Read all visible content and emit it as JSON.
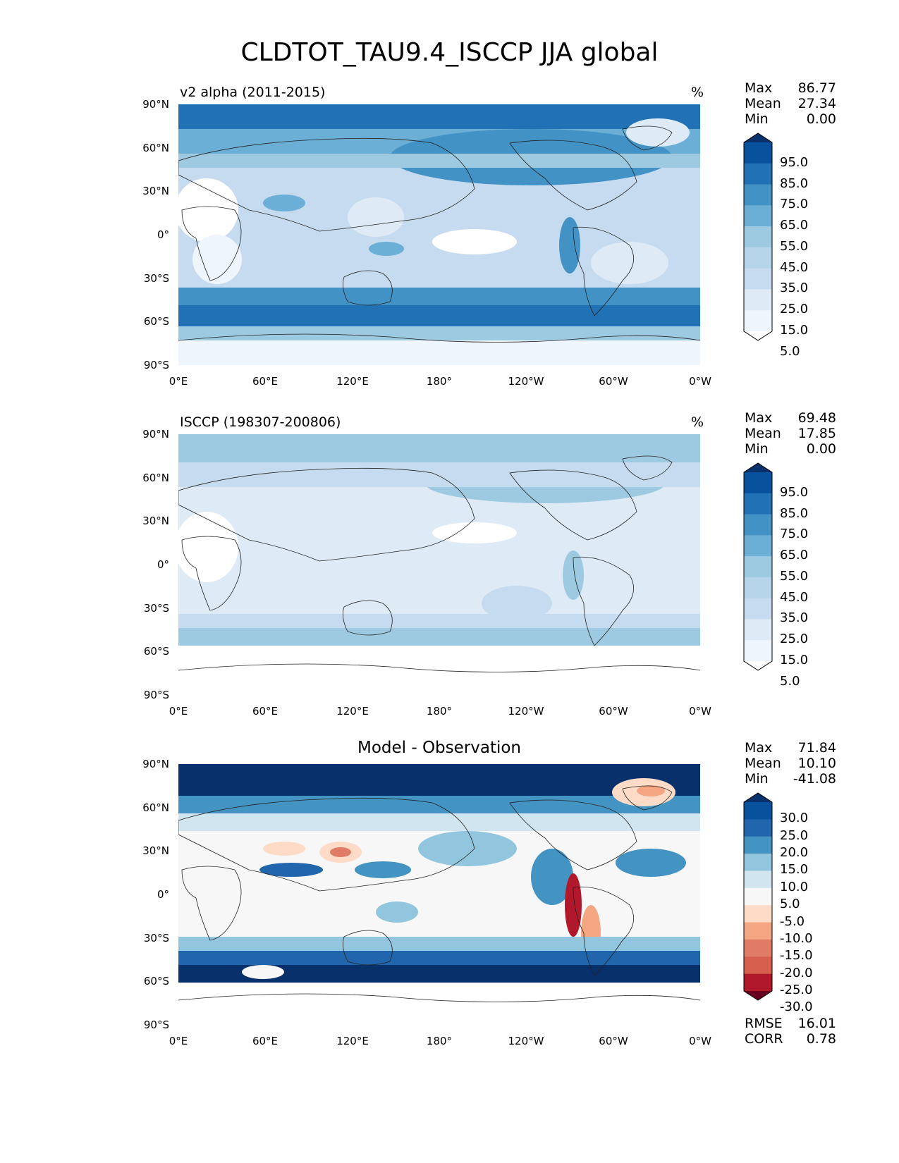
{
  "title": "CLDTOT_TAU9.4_ISCCP JJA global",
  "lat_labels": [
    "90°N",
    "60°N",
    "30°N",
    "0°",
    "30°S",
    "60°S",
    "90°S"
  ],
  "lon_labels": [
    "0°E",
    "60°E",
    "120°E",
    "180°",
    "120°W",
    "60°W",
    "0°W"
  ],
  "panels": [
    {
      "title": "v2 alpha (2011-2015)",
      "units": "%",
      "stats": {
        "max_label": "Max",
        "max": "86.77",
        "mean_label": "Mean",
        "mean": "27.34",
        "min_label": "Min",
        "min": "0.00"
      },
      "colorbar": {
        "labels": [
          "95.0",
          "85.0",
          "75.0",
          "65.0",
          "55.0",
          "45.0",
          "35.0",
          "25.0",
          "15.0",
          "5.0"
        ],
        "colors": [
          "#08306b",
          "#08519c",
          "#2171b5",
          "#4292c6",
          "#6baed6",
          "#9ecae1",
          "#b5d4e9",
          "#c6dbef",
          "#deebf7",
          "#eef5fc",
          "#ffffff"
        ]
      }
    },
    {
      "title": "ISCCP (198307-200806)",
      "units": "%",
      "stats": {
        "max_label": "Max",
        "max": "69.48",
        "mean_label": "Mean",
        "mean": "17.85",
        "min_label": "Min",
        "min": "0.00"
      },
      "colorbar": {
        "labels": [
          "95.0",
          "85.0",
          "75.0",
          "65.0",
          "55.0",
          "45.0",
          "35.0",
          "25.0",
          "15.0",
          "5.0"
        ],
        "colors": [
          "#08306b",
          "#08519c",
          "#2171b5",
          "#4292c6",
          "#6baed6",
          "#9ecae1",
          "#b5d4e9",
          "#c6dbef",
          "#deebf7",
          "#eef5fc",
          "#ffffff"
        ]
      }
    },
    {
      "title": "Model - Observation",
      "units": "",
      "stats": {
        "max_label": "Max",
        "max": "71.84",
        "mean_label": "Mean",
        "mean": "10.10",
        "min_label": "Min",
        "min": "-41.08"
      },
      "colorbar": {
        "labels": [
          "30.0",
          "25.0",
          "20.0",
          "15.0",
          "10.0",
          "5.0",
          "-5.0",
          "-10.0",
          "-15.0",
          "-20.0",
          "-25.0",
          "-30.0"
        ],
        "colors": [
          "#08306b",
          "#08519c",
          "#2166ac",
          "#4393c3",
          "#92c5de",
          "#d1e5f0",
          "#f7f7f7",
          "#fddbc7",
          "#f4a582",
          "#e07b65",
          "#d6604d",
          "#b2182b",
          "#67001f"
        ]
      },
      "metrics": {
        "rmse_label": "RMSE",
        "rmse": "16.01",
        "corr_label": "CORR",
        "corr": "0.78"
      }
    }
  ]
}
